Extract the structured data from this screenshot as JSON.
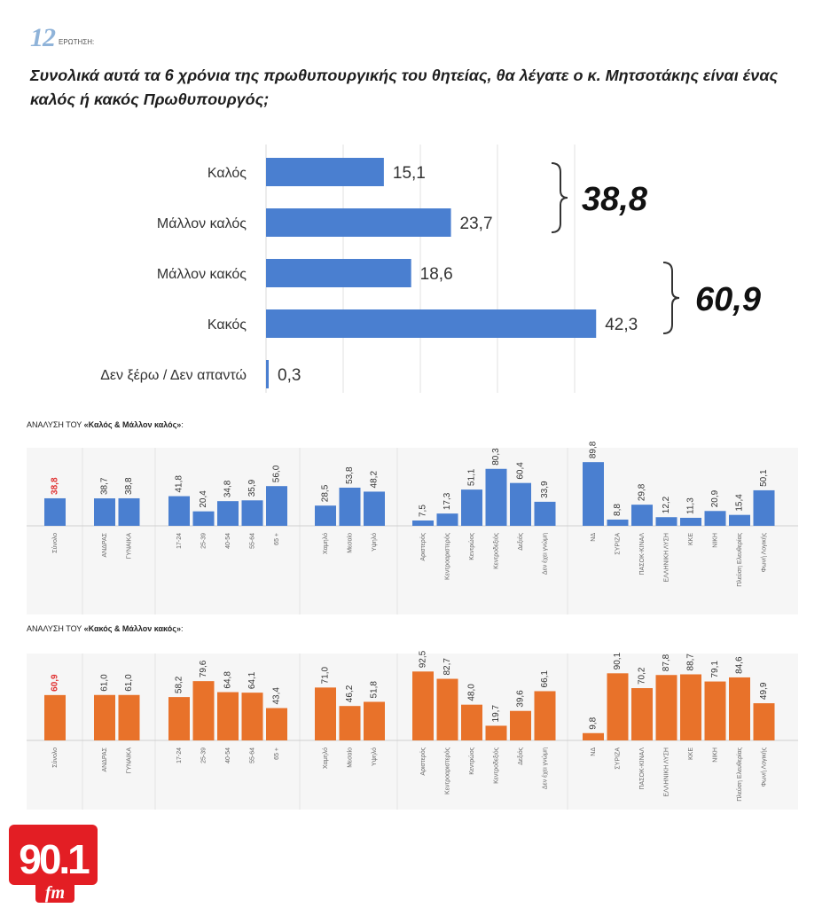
{
  "header": {
    "question_number": "12",
    "question_word": "ΕΡΩΤΗΣΗ:",
    "title": "Συνολικά αυτά τα 6 χρόνια της πρωθυπουργικής του θητείας, θα λέγατε ο κ. Μητσοτάκης είναι ένας καλός ή κακός Πρωθυπουργός;"
  },
  "colors": {
    "blue": "#4a7fd0",
    "orange": "#e8722a",
    "red": "#e03030",
    "logo_red": "#e31e24"
  },
  "chart_data": [
    {
      "type": "bar",
      "orientation": "horizontal",
      "categories": [
        "Καλός",
        "Μάλλον καλός",
        "Μάλλον κακός",
        "Κακός",
        "Δεν ξέρω / Δεν απαντώ"
      ],
      "values": [
        15.1,
        23.7,
        18.6,
        42.3,
        0.3
      ],
      "value_labels": [
        "15,1",
        "23,7",
        "18,6",
        "42,3",
        "0,3"
      ],
      "brackets": [
        {
          "label": "38,8",
          "covers": [
            "Καλός",
            "Μάλλον καλός"
          ]
        },
        {
          "label": "60,9",
          "covers": [
            "Μάλλον κακός",
            "Κακός"
          ]
        }
      ]
    },
    {
      "type": "bar",
      "title_prefix": "ΑΝΑΛΥΣΗ ΤΟΥ ",
      "title_emph": "«Καλός & Μάλλον καλός»",
      "title_suffix": ":",
      "groups": [
        {
          "categories": [
            "Σύνολο"
          ],
          "values": [
            38.8
          ],
          "labels": [
            "38,8"
          ]
        },
        {
          "categories": [
            "ΑΝΔΡΑΣ",
            "ΓΥΝΑΙΚΑ"
          ],
          "values": [
            38.7,
            38.8
          ],
          "labels": [
            "38,7",
            "38,8"
          ]
        },
        {
          "categories": [
            "17-24",
            "25-39",
            "40-54",
            "55-64",
            "65 +"
          ],
          "values": [
            41.8,
            20.4,
            34.8,
            35.9,
            56.0
          ],
          "labels": [
            "41,8",
            "20,4",
            "34,8",
            "35,9",
            "56,0"
          ]
        },
        {
          "categories": [
            "Χαμηλό",
            "Μεσαίο",
            "Υψηλό"
          ],
          "values": [
            28.5,
            53.8,
            48.2
          ],
          "labels": [
            "28,5",
            "53,8",
            "48,2"
          ]
        },
        {
          "categories": [
            "Αριστερός",
            "Κεντροαριστερός",
            "Κεντρώος",
            "Κεντροδεξιός",
            "Δεξιός",
            "Δεν έχει γνώμη"
          ],
          "values": [
            7.5,
            17.3,
            51.1,
            80.3,
            60.4,
            33.9
          ],
          "labels": [
            "7,5",
            "17,3",
            "51,1",
            "80,3",
            "60,4",
            "33,9"
          ]
        },
        {
          "categories": [
            "ΝΔ",
            "ΣΥΡΙΖΑ",
            "ΠΑΣΟΚ-ΚΙΝΑΛ",
            "ΕΛΛΗΝΙΚΗ ΛΥΣΗ",
            "ΚΚΕ",
            "ΝΙΚΗ",
            "Πλεύση Ελευθερίας",
            "Φωνή Λογικής"
          ],
          "values": [
            89.8,
            8.8,
            29.8,
            12.2,
            11.3,
            20.9,
            15.4,
            50.1
          ],
          "labels": [
            "89,8",
            "8,8",
            "29,8",
            "12,2",
            "11,3",
            "20,9",
            "15,4",
            "50,1"
          ]
        }
      ]
    },
    {
      "type": "bar",
      "title_prefix": "ΑΝΑΛΥΣΗ ΤΟΥ ",
      "title_emph": "«Κακός & Μάλλον κακός»",
      "title_suffix": ":",
      "groups": [
        {
          "categories": [
            "Σύνολο"
          ],
          "values": [
            60.9
          ],
          "labels": [
            "60,9"
          ]
        },
        {
          "categories": [
            "ΑΝΔΡΑΣ",
            "ΓΥΝΑΙΚΑ"
          ],
          "values": [
            61.0,
            61.0
          ],
          "labels": [
            "61,0",
            "61,0"
          ]
        },
        {
          "categories": [
            "17-24",
            "25-39",
            "40-54",
            "55-64",
            "65 +"
          ],
          "values": [
            58.2,
            79.6,
            64.8,
            64.1,
            43.4
          ],
          "labels": [
            "58,2",
            "79,6",
            "64,8",
            "64,1",
            "43,4"
          ]
        },
        {
          "categories": [
            "Χαμηλό",
            "Μεσαίο",
            "Υψηλό"
          ],
          "values": [
            71.0,
            46.2,
            51.8
          ],
          "labels": [
            "71,0",
            "46,2",
            "51,8"
          ]
        },
        {
          "categories": [
            "Αριστερός",
            "Κεντροαριστερός",
            "Κεντρώος",
            "Κεντροδεξιός",
            "Δεξιός",
            "Δεν έχει γνώμη"
          ],
          "values": [
            92.5,
            82.7,
            48.0,
            19.7,
            39.6,
            66.1
          ],
          "labels": [
            "92,5",
            "82,7",
            "48,0",
            "19,7",
            "39,6",
            "66,1"
          ]
        },
        {
          "categories": [
            "ΝΔ",
            "ΣΥΡΙΖΑ",
            "ΠΑΣΟΚ-ΚΙΝΑΛ",
            "ΕΛΛΗΝΙΚΗ ΛΥΣΗ",
            "ΚΚΕ",
            "ΝΙΚΗ",
            "Πλεύση Ελευθερίας",
            "Φωνή Λογικής"
          ],
          "values": [
            9.8,
            90.1,
            70.2,
            87.8,
            88.7,
            79.1,
            84.6,
            49.9
          ],
          "labels": [
            "9,8",
            "90,1",
            "70,2",
            "87,8",
            "88,7",
            "79,1",
            "84,6",
            "49,9"
          ]
        }
      ]
    }
  ],
  "logo": {
    "number": "90.1",
    "suffix": "fm"
  }
}
